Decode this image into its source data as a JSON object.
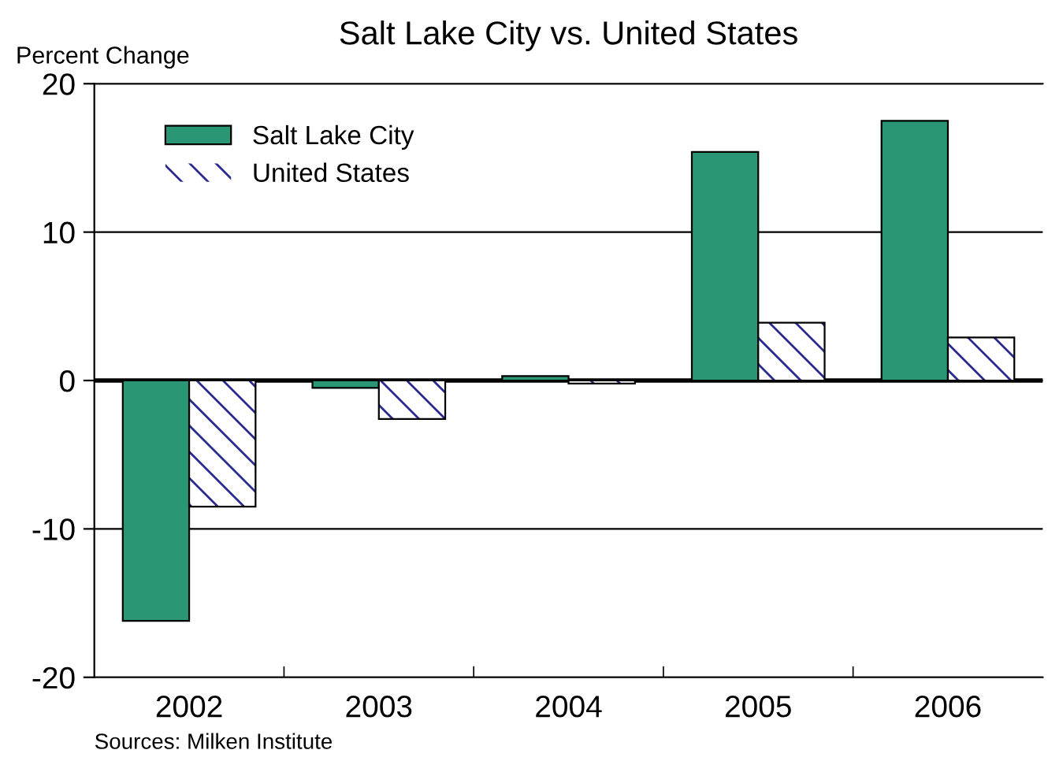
{
  "chart_data": {
    "type": "bar",
    "title": "Salt Lake City vs. United States",
    "ylabel": "Percent Change",
    "categories": [
      "2002",
      "2003",
      "2004",
      "2005",
      "2006"
    ],
    "series": [
      {
        "name": "Salt Lake City",
        "color": "#2a9676",
        "values": [
          -16.2,
          -0.5,
          0.3,
          15.4,
          17.5
        ]
      },
      {
        "name": "United States",
        "color": "#2b2b8f",
        "values": [
          -8.5,
          -2.6,
          -0.2,
          3.9,
          2.9
        ]
      }
    ],
    "ylim": [
      -20,
      20
    ],
    "yticks": [
      -20,
      -10,
      0,
      10,
      20
    ],
    "grid": "y",
    "legend": "top left",
    "annotations": [
      "Sources: Milken Institute"
    ]
  }
}
